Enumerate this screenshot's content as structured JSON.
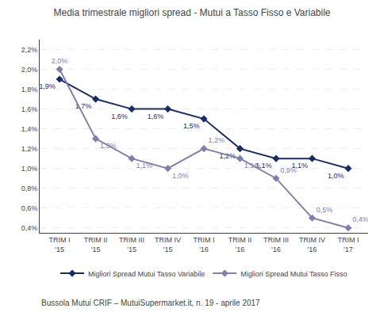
{
  "chart_data": {
    "type": "line",
    "title": "Media trimestrale migliori spread - Mutui a Tasso Fisso e Variabile",
    "subtitle": "Bussola Mutui CRIF – MutuiSupermarket.it, n. 19 - aprile 2017",
    "categories": [
      "TRIM I\n'15",
      "TRIM II\n'15",
      "TRIM III\n'15",
      "TRIM IV\n'15",
      "TRIM I\n'16",
      "TRIM II\n'16",
      "TRIM III\n'16",
      "TRIM IV\n'16",
      "TRIM I\n'17"
    ],
    "series": [
      {
        "name": "Migliori Spread Mutui Tasso Variabile",
        "color": "#1a2b6b",
        "marker": "diamond",
        "line_style": "solid",
        "values": [
          1.9,
          1.7,
          1.6,
          1.6,
          1.5,
          1.2,
          1.1,
          1.1,
          1.0
        ],
        "value_labels": [
          "1,9%",
          "1,7%",
          "1,6%",
          "1,6%",
          "1,5%",
          "1,2%",
          "1,1%",
          "1,1%",
          "1,0%"
        ]
      },
      {
        "name": "Migliori Spread Mutui Tasso Fisso",
        "color": "#8080b0",
        "marker": "diamond",
        "line_style": "solid",
        "values": [
          2.0,
          1.3,
          1.1,
          1.0,
          1.2,
          1.1,
          0.9,
          0.5,
          0.4
        ],
        "value_labels": [
          "2,0%",
          "1,3%",
          "1,1%",
          "1,0%",
          "1,2%",
          "1,1%",
          "0,9%",
          "0,5%",
          "0,4%"
        ]
      }
    ],
    "ylim": [
      0.35,
      2.3
    ],
    "yticks": [
      {
        "value": 0.4,
        "label": "0,4%"
      },
      {
        "value": 0.6,
        "label": "0,6%"
      },
      {
        "value": 0.8,
        "label": "0,8%"
      },
      {
        "value": 1.0,
        "label": "1,0%"
      },
      {
        "value": 1.2,
        "label": "1,2%"
      },
      {
        "value": 1.4,
        "label": "1,4%"
      },
      {
        "value": 1.6,
        "label": "1,6%"
      },
      {
        "value": 1.8,
        "label": "1,8%"
      },
      {
        "value": 2.0,
        "label": "2,0%"
      },
      {
        "value": 2.2,
        "label": "2,2%"
      }
    ],
    "grid": true,
    "legend": "bottom",
    "data_labels": true
  }
}
